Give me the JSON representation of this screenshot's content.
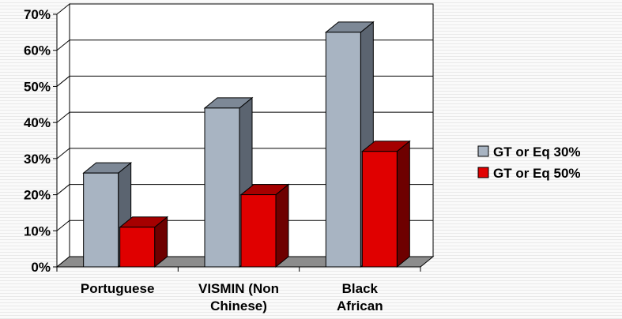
{
  "chart_data": {
    "type": "bar",
    "categories": [
      [
        "Portuguese"
      ],
      [
        "VISMIN (Non",
        "Chinese)"
      ],
      [
        "Black",
        "African"
      ]
    ],
    "series": [
      {
        "name": "GT or Eq 30%",
        "values": [
          26,
          44,
          65
        ]
      },
      {
        "name": "GT or Eq 50%",
        "values": [
          11,
          20,
          32
        ]
      }
    ],
    "ylim": [
      0,
      70
    ],
    "yticks": [
      "0%",
      "10%",
      "20%",
      "30%",
      "40%",
      "50%",
      "60%",
      "70%"
    ],
    "grid": true,
    "three_d": true,
    "legend_position": "right"
  },
  "colors": {
    "series": [
      {
        "front": "#a8b4c2",
        "side": "#5b6470",
        "top": "#7d8896"
      },
      {
        "front": "#e00000",
        "side": "#6e0000",
        "top": "#a50000"
      }
    ],
    "grid": "#000000",
    "floor": "#8c8c8c",
    "wall": "#ffffff"
  }
}
